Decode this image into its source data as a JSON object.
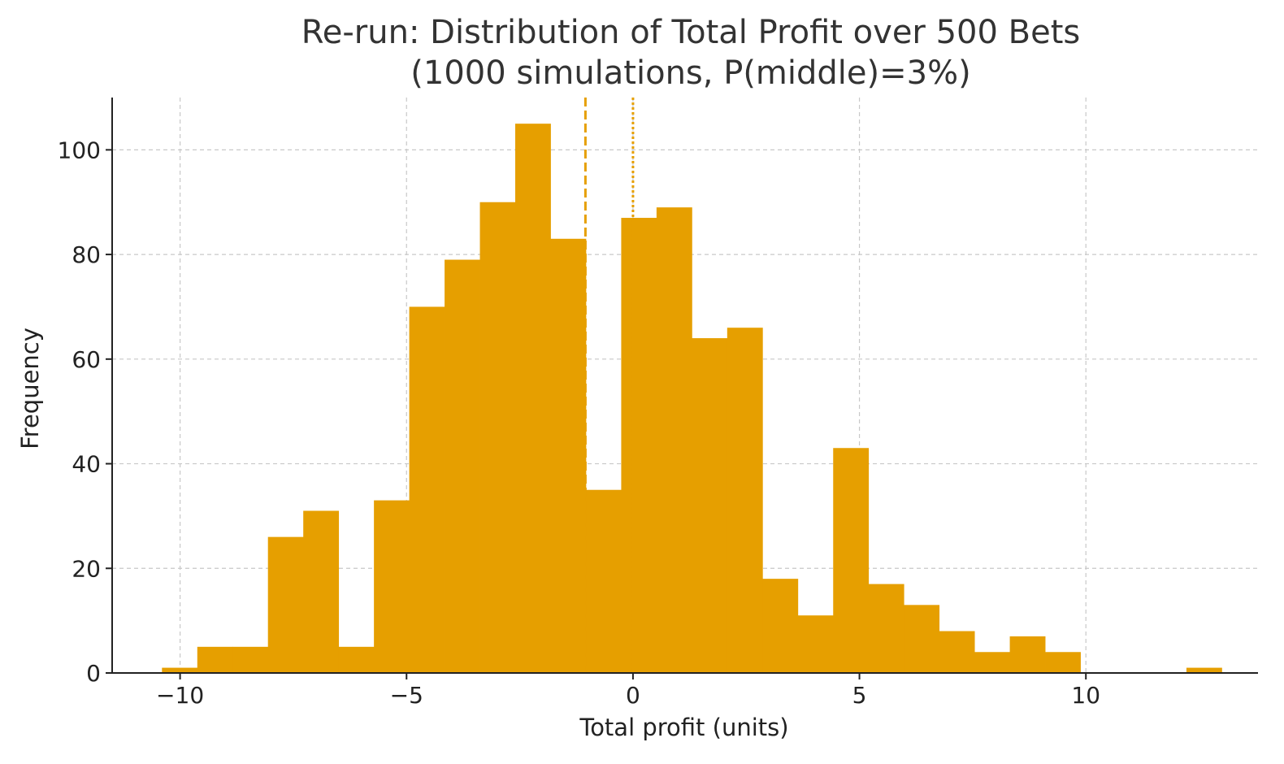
{
  "chart_data": {
    "type": "bar",
    "title_line1": "Re-run: Distribution of Total Profit over 500 Bets",
    "title_line2": "(1000 simulations, P(middle)=3%)",
    "xlabel": "Total profit (units)",
    "ylabel": "Frequency",
    "xlim": [
      -11.5,
      13.8
    ],
    "ylim": [
      0,
      110
    ],
    "x_ticks": [
      -10,
      -5,
      0,
      5,
      10
    ],
    "x_tick_labels": [
      "−10",
      "−5",
      "0",
      "5",
      "10"
    ],
    "y_ticks": [
      0,
      20,
      40,
      60,
      80,
      100
    ],
    "y_tick_labels": [
      "0",
      "20",
      "40",
      "60",
      "80",
      "100"
    ],
    "grid": true,
    "bar_color": "#E69F00",
    "bins": [
      {
        "x0": -10.4,
        "x1": -9.62,
        "count": 1
      },
      {
        "x0": -9.62,
        "x1": -8.84,
        "count": 5
      },
      {
        "x0": -8.84,
        "x1": -8.06,
        "count": 5
      },
      {
        "x0": -8.06,
        "x1": -7.28,
        "count": 26
      },
      {
        "x0": -7.28,
        "x1": -6.5,
        "count": 31
      },
      {
        "x0": -6.5,
        "x1": -5.72,
        "count": 5
      },
      {
        "x0": -5.72,
        "x1": -4.94,
        "count": 33
      },
      {
        "x0": -4.94,
        "x1": -4.16,
        "count": 70
      },
      {
        "x0": -4.16,
        "x1": -3.38,
        "count": 79
      },
      {
        "x0": -3.38,
        "x1": -2.6,
        "count": 90
      },
      {
        "x0": -2.6,
        "x1": -1.82,
        "count": 105
      },
      {
        "x0": -1.82,
        "x1": -1.04,
        "count": 83
      },
      {
        "x0": -1.04,
        "x1": -0.26,
        "count": 35
      },
      {
        "x0": -0.26,
        "x1": 0.52,
        "count": 87
      },
      {
        "x0": 0.52,
        "x1": 1.3,
        "count": 89
      },
      {
        "x0": 1.3,
        "x1": 2.08,
        "count": 64
      },
      {
        "x0": 2.08,
        "x1": 2.86,
        "count": 66
      },
      {
        "x0": 2.86,
        "x1": 3.64,
        "count": 18
      },
      {
        "x0": 3.64,
        "x1": 4.42,
        "count": 11
      },
      {
        "x0": 4.42,
        "x1": 5.2,
        "count": 43
      },
      {
        "x0": 5.2,
        "x1": 5.98,
        "count": 17
      },
      {
        "x0": 5.98,
        "x1": 6.76,
        "count": 13
      },
      {
        "x0": 6.76,
        "x1": 7.54,
        "count": 8
      },
      {
        "x0": 7.54,
        "x1": 8.32,
        "count": 4
      },
      {
        "x0": 8.32,
        "x1": 9.1,
        "count": 7
      },
      {
        "x0": 9.1,
        "x1": 9.88,
        "count": 4
      },
      {
        "x0": 9.88,
        "x1": 10.66,
        "count": 0
      },
      {
        "x0": 10.66,
        "x1": 11.44,
        "count": 0
      },
      {
        "x0": 11.44,
        "x1": 12.22,
        "count": 0
      },
      {
        "x0": 12.22,
        "x1": 13.0,
        "count": 1
      }
    ],
    "reference_lines": [
      {
        "x": -1.05,
        "style": "dashed",
        "color": "#E69F00"
      },
      {
        "x": 0.0,
        "style": "dotted",
        "color": "#E69F00"
      }
    ]
  }
}
